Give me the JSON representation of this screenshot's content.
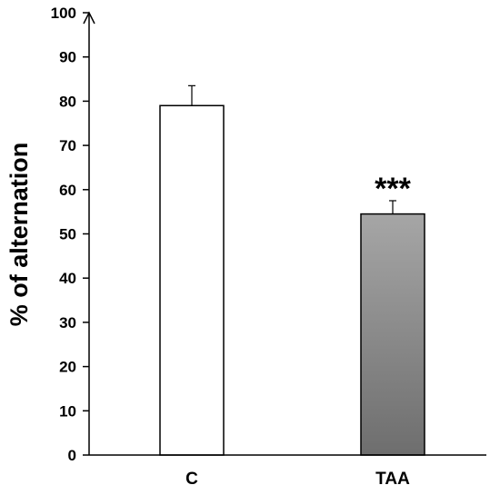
{
  "chart_data": {
    "type": "bar",
    "categories": [
      "C",
      "TAA"
    ],
    "values": [
      79,
      54.5
    ],
    "errors": [
      4.5,
      3
    ],
    "ylabel": "% of alternation",
    "xlabel": "",
    "title": "",
    "ylim": [
      0,
      100
    ],
    "yticks": [
      0,
      10,
      20,
      30,
      40,
      50,
      60,
      70,
      80,
      90,
      100
    ],
    "grid": false,
    "legend": "none",
    "annotations": [
      {
        "category": "TAA",
        "text": "***"
      }
    ],
    "colors": {
      "C": {
        "fill": "#ffffff",
        "stroke": "#000000"
      },
      "TAA": {
        "fill_top": "#a6a6a6",
        "fill_bottom": "#6e6e6e",
        "stroke": "#000000"
      }
    }
  }
}
